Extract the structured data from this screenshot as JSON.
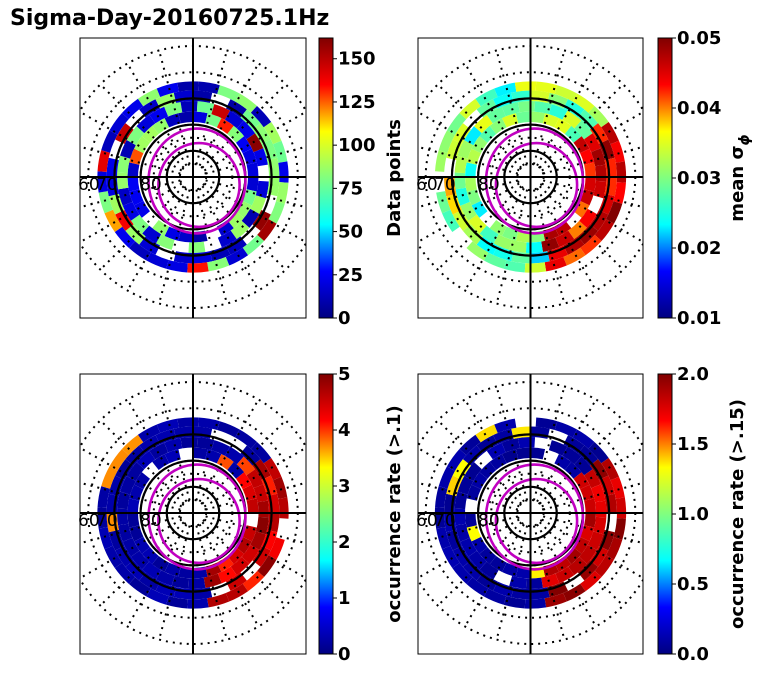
{
  "title": "Sigma-Day-20160725.1Hz",
  "chart_data": [
    {
      "type": "heatmap",
      "projection": "polar",
      "lat_ring_labels": [
        "60",
        "70",
        "80"
      ],
      "colorbar": {
        "label": "Data points",
        "label_math": false,
        "ticks": [
          "0",
          "25",
          "50",
          "75",
          "100",
          "125",
          "150"
        ],
        "tick_values": [
          0,
          25,
          50,
          75,
          100,
          125,
          150
        ],
        "range": [
          0,
          162
        ]
      }
    },
    {
      "type": "heatmap",
      "projection": "polar",
      "lat_ring_labels": [
        "60",
        "70",
        "80"
      ],
      "colorbar": {
        "label": "mean σ",
        "label_sub": "ϕ",
        "label_math": true,
        "ticks": [
          "0.01",
          "0.02",
          "0.03",
          "0.04",
          "0.05"
        ],
        "tick_values": [
          0.01,
          0.02,
          0.03,
          0.04,
          0.05
        ],
        "range": [
          0.01,
          0.05
        ]
      }
    },
    {
      "type": "heatmap",
      "projection": "polar",
      "lat_ring_labels": [
        "60",
        "70",
        "80"
      ],
      "colorbar": {
        "label": "occurrence rate (>.1)",
        "label_math": false,
        "ticks": [
          "0",
          "1",
          "2",
          "3",
          "4",
          "5"
        ],
        "tick_values": [
          0,
          1,
          2,
          3,
          4,
          5
        ],
        "range": [
          0,
          5
        ]
      }
    },
    {
      "type": "heatmap",
      "projection": "polar",
      "lat_ring_labels": [
        "60",
        "70",
        "80"
      ],
      "colorbar": {
        "label": "occurrence rate (>.15)",
        "label_math": false,
        "ticks": [
          "0.0",
          "0.5",
          "1.0",
          "1.5",
          "2.0"
        ],
        "tick_values": [
          0,
          0.5,
          1.0,
          1.5,
          2.0
        ],
        "range": [
          0,
          2
        ]
      }
    }
  ],
  "colors": {
    "jet": [
      "#000080",
      "#0000ff",
      "#00ffff",
      "#80ff80",
      "#ffff00",
      "#ff0000",
      "#800000"
    ],
    "oval": "#c000c0",
    "axis": "#000000"
  }
}
